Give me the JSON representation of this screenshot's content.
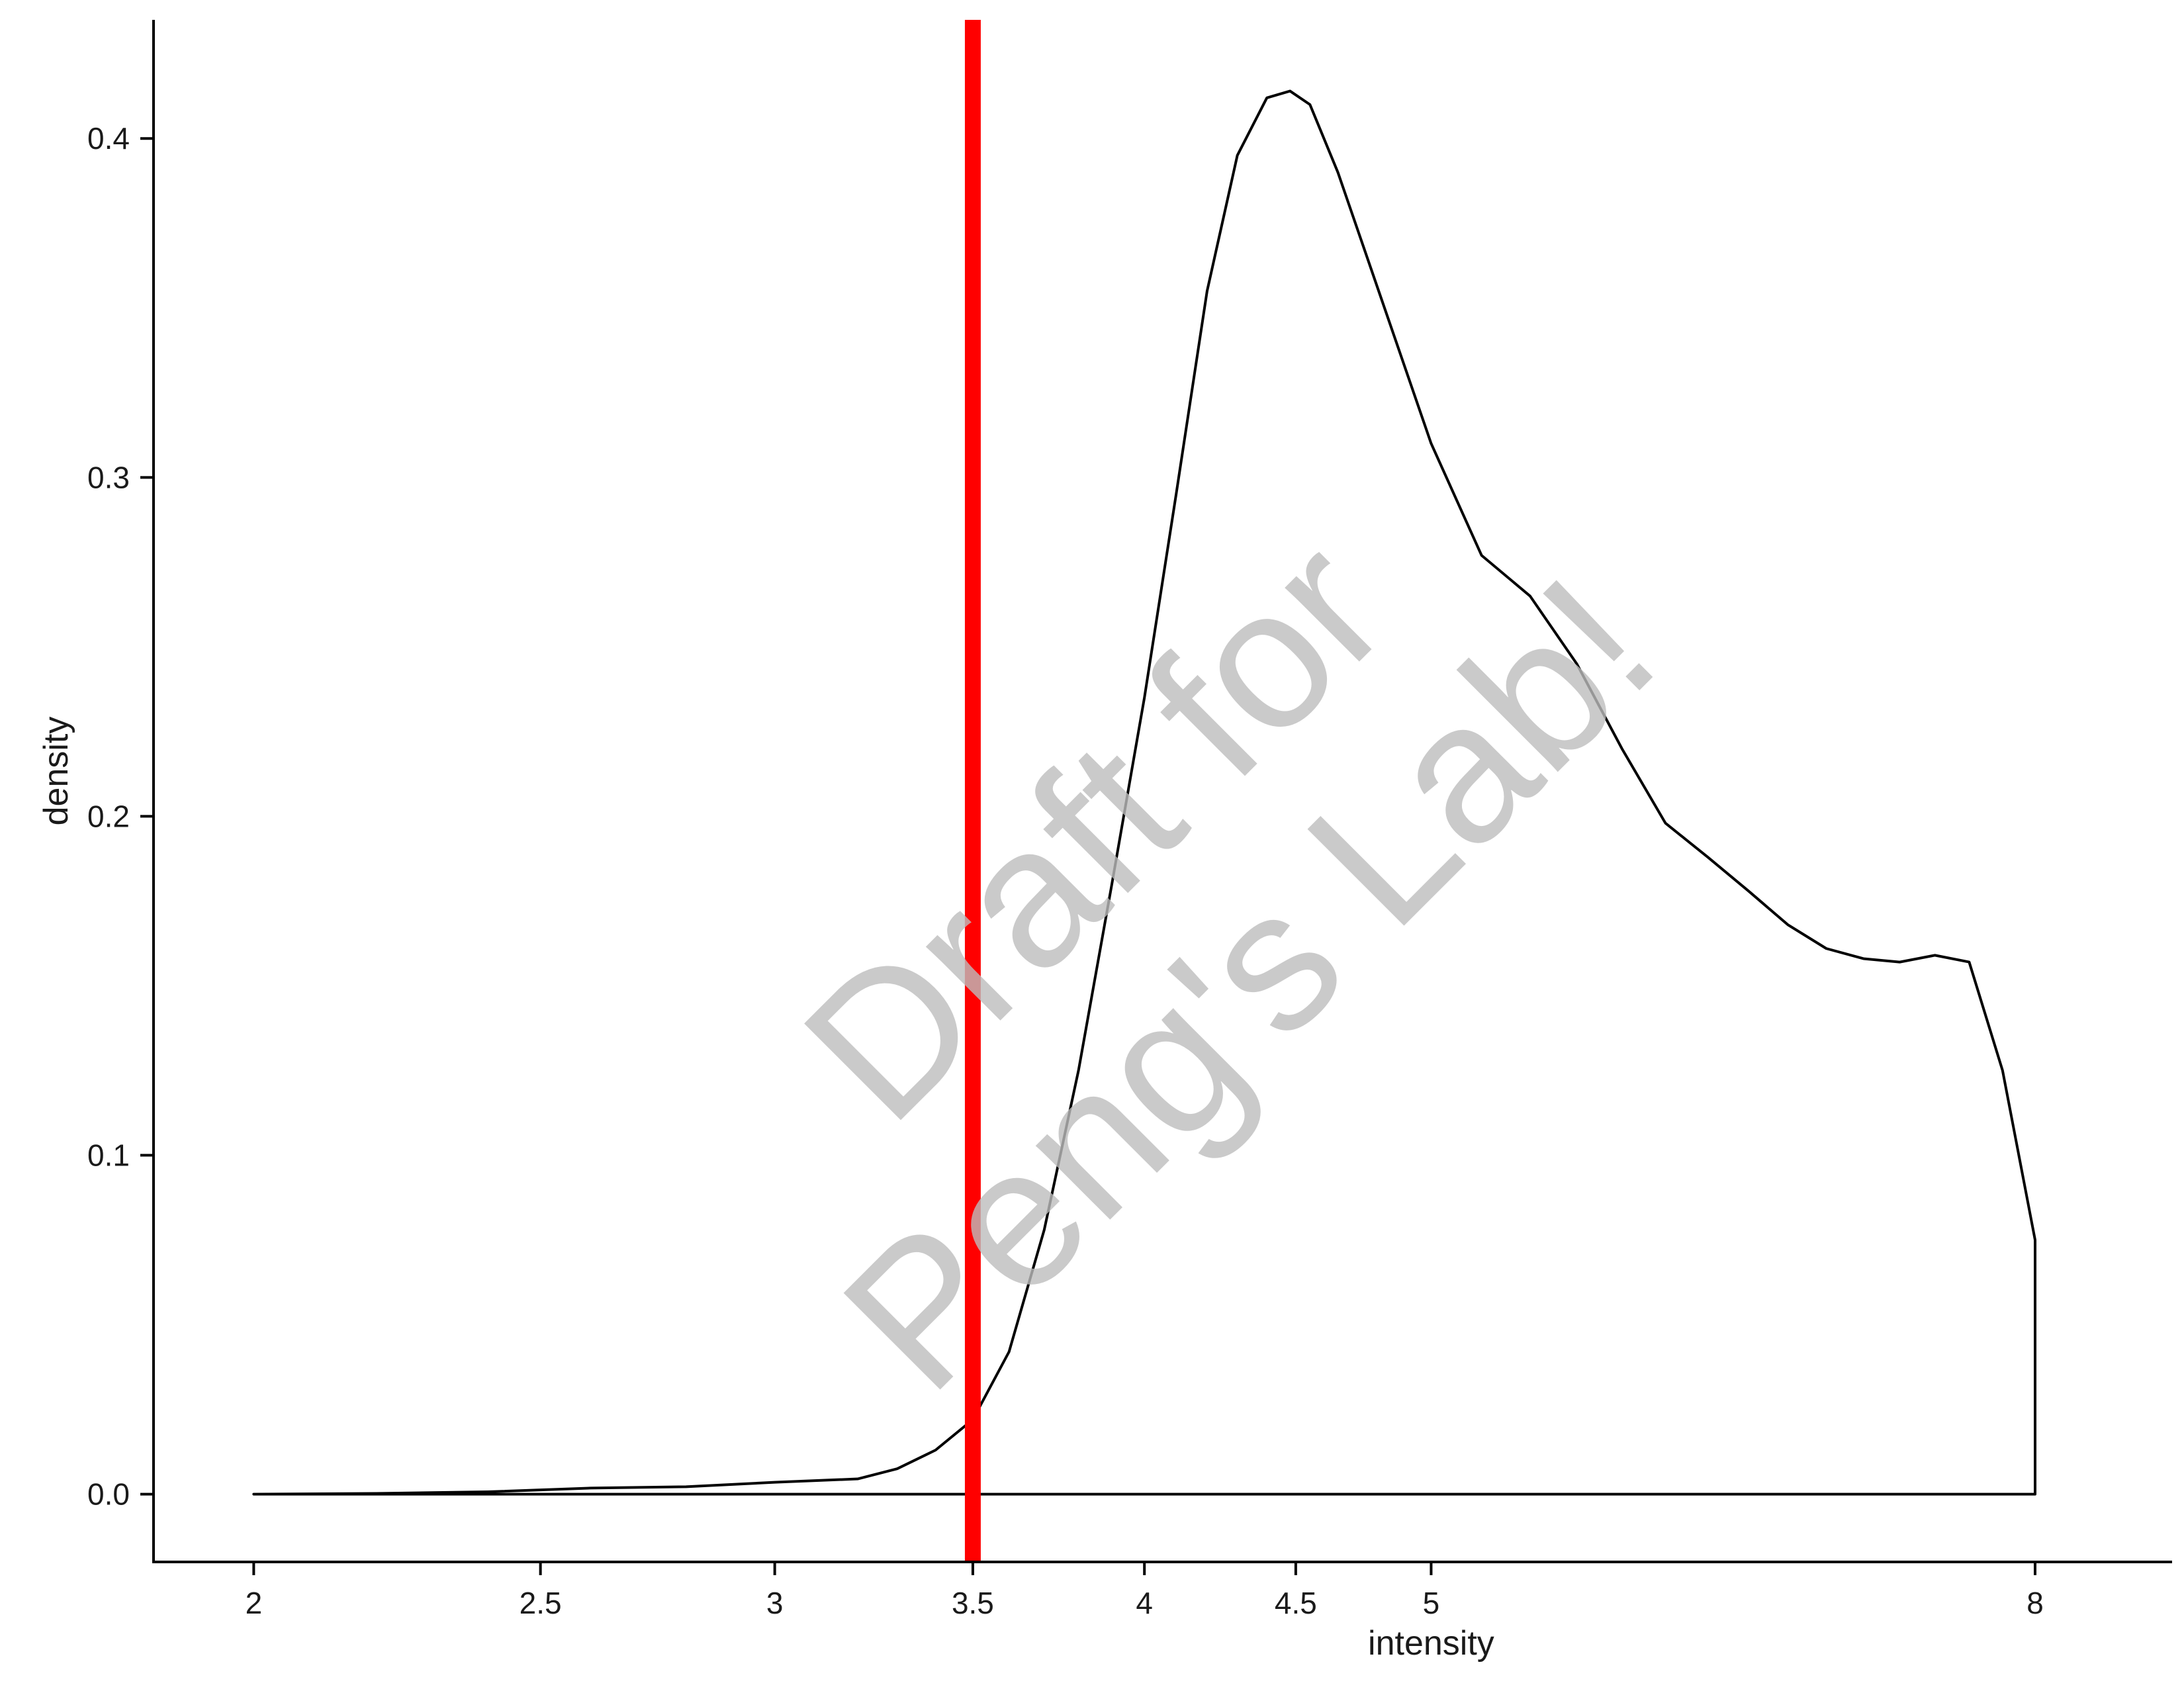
{
  "chart_data": {
    "type": "line",
    "title": "",
    "xlabel": "intensity",
    "ylabel": "density",
    "x_ticks": [
      2,
      2.5,
      3,
      3.5,
      4,
      4.5,
      5,
      8
    ],
    "x_tick_labels": [
      "2",
      "2.5",
      "3",
      "3.5",
      "4",
      "4.5",
      "5",
      "8"
    ],
    "y_ticks": [
      0.0,
      0.1,
      0.2,
      0.3,
      0.4
    ],
    "y_tick_labels": [
      "0.0",
      "0.1",
      "0.2",
      "0.3",
      "0.4"
    ],
    "x_scale": "log",
    "xlim": [
      1.85,
      8.9
    ],
    "ylim": [
      -0.02,
      0.435
    ],
    "grid": false,
    "series": [
      {
        "color": "#000000",
        "x": [
          2.0,
          2.2,
          2.4,
          2.6,
          2.8,
          3.0,
          3.2,
          3.3,
          3.4,
          3.5,
          3.6,
          3.7,
          3.8,
          3.9,
          4.0,
          4.1,
          4.2,
          4.3,
          4.4,
          4.48,
          4.55,
          4.65,
          4.8,
          5.0,
          5.2,
          5.4,
          5.6,
          5.8,
          6.0,
          6.2,
          6.4,
          6.6,
          6.8,
          7.0,
          7.2,
          7.4,
          7.6,
          7.8,
          8.0
        ],
        "y": [
          0.0,
          0.0002,
          0.0007,
          0.0018,
          0.0022,
          0.0035,
          0.0045,
          0.0075,
          0.013,
          0.022,
          0.042,
          0.078,
          0.125,
          0.18,
          0.235,
          0.295,
          0.355,
          0.395,
          0.412,
          0.414,
          0.41,
          0.39,
          0.355,
          0.31,
          0.277,
          0.265,
          0.245,
          0.22,
          0.198,
          0.188,
          0.178,
          0.168,
          0.161,
          0.158,
          0.157,
          0.159,
          0.157,
          0.125,
          0.075
        ]
      }
    ],
    "vline": {
      "x": 3.5,
      "color": "#ff0000"
    },
    "watermark": "Draft for Peng's Lab!"
  }
}
